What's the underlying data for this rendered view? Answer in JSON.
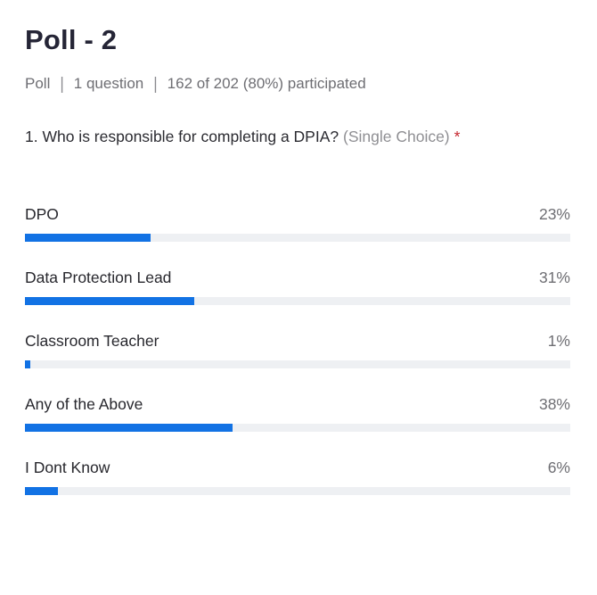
{
  "page": {
    "title": "Poll - 2"
  },
  "meta": {
    "type_label": "Poll",
    "question_count": "1 question",
    "participation": "162 of 202 (80%) participated",
    "separator": "|"
  },
  "question": {
    "text": "1. Who is responsible for completing a DPIA?",
    "type_hint": "(Single Choice)",
    "required_marker": "*"
  },
  "poll": {
    "options": [
      {
        "label": "DPO",
        "percent": 23,
        "percent_label": "23%"
      },
      {
        "label": "Data Protection Lead",
        "percent": 31,
        "percent_label": "31%"
      },
      {
        "label": "Classroom Teacher",
        "percent": 1,
        "percent_label": "1%"
      },
      {
        "label": "Any of the Above",
        "percent": 38,
        "percent_label": "38%"
      },
      {
        "label": "I Dont Know",
        "percent": 6,
        "percent_label": "6%"
      }
    ]
  },
  "colors": {
    "bar_fill": "#1272e4",
    "bar_track": "#eef0f3",
    "title_text": "#252536",
    "meta_text": "#6e6e73",
    "required_red": "#c5262e"
  },
  "chart_data": {
    "type": "bar",
    "orientation": "horizontal",
    "title": "Poll - 2",
    "subtitle": "Poll | 1 question | 162 of 202 (80%) participated",
    "question": "1. Who is responsible for completing a DPIA? (Single Choice)",
    "categories": [
      "DPO",
      "Data Protection Lead",
      "Classroom Teacher",
      "Any of the Above",
      "I Dont Know"
    ],
    "values": [
      23,
      31,
      1,
      38,
      6
    ],
    "value_unit": "%",
    "xlim": [
      0,
      100
    ],
    "grid": false,
    "legend": false
  }
}
